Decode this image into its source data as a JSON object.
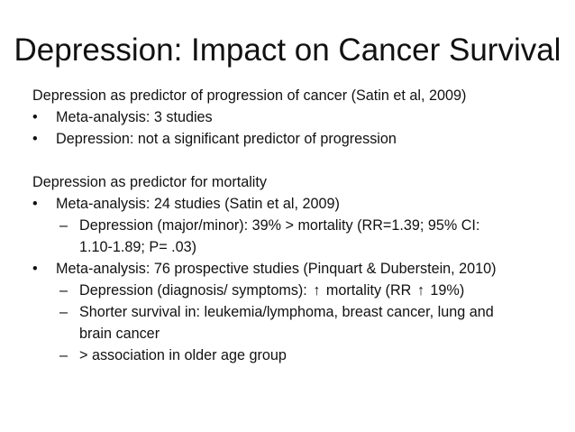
{
  "title": "Depression: Impact on Cancer Survival",
  "bullet_marker": "•",
  "dash_marker": "–",
  "section1": {
    "heading": "Depression as predictor of progression of cancer (Satin et al, 2009)",
    "items": [
      "Meta-analysis: 3 studies",
      "Depression: not a significant predictor of progression"
    ]
  },
  "section2": {
    "heading": "Depression as predictor for mortality",
    "item1": {
      "text": "Meta-analysis: 24 studies  (Satin et al, 2009)",
      "sub1": {
        "line1": "Depression (major/minor): 39% > mortality (RR=1.39; 95% CI:",
        "line2": "1.10-1.89; P= .03)"
      }
    },
    "item2": {
      "text": "Meta-analysis: 76 prospective studies  (Pinquart & Duberstein, 2010)",
      "sub1": {
        "part1": "Depression (diagnosis/ symptoms):",
        "part2": "mortality (RR",
        "part3": "19%)"
      },
      "sub2": {
        "line1": "Shorter survival in: leukemia/lymphoma, breast cancer, lung and",
        "line2": "brain cancer"
      },
      "sub3": "> association in older age group"
    }
  },
  "arrow_glyph": "↑",
  "arrow_icon": "up-arrow-icon"
}
